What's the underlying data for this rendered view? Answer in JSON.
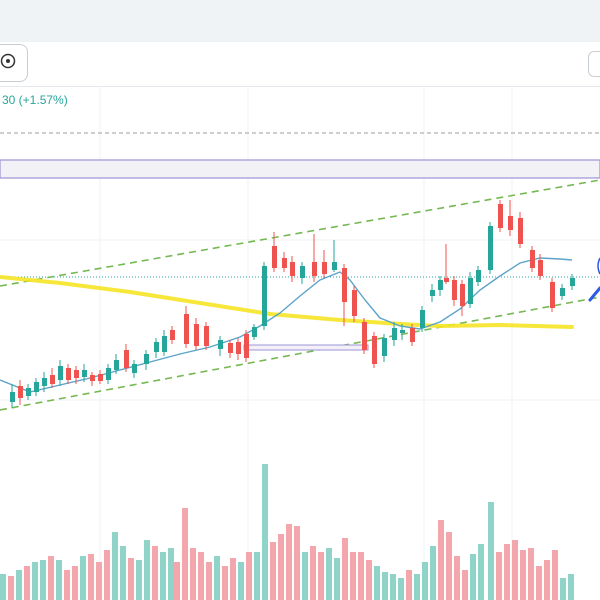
{
  "header": {
    "change_text": "30 (+1.57%)"
  },
  "icons": {
    "tool": "eye-icon"
  },
  "colors": {
    "up": "#26a69a",
    "down": "#ef5350",
    "vol_up": "#8fd3c9",
    "vol_down": "#f4a6ad",
    "ma": "#5ba3c9",
    "channel": "#76b852",
    "support": "#f5e425",
    "band": "#9c94d6"
  }
}
